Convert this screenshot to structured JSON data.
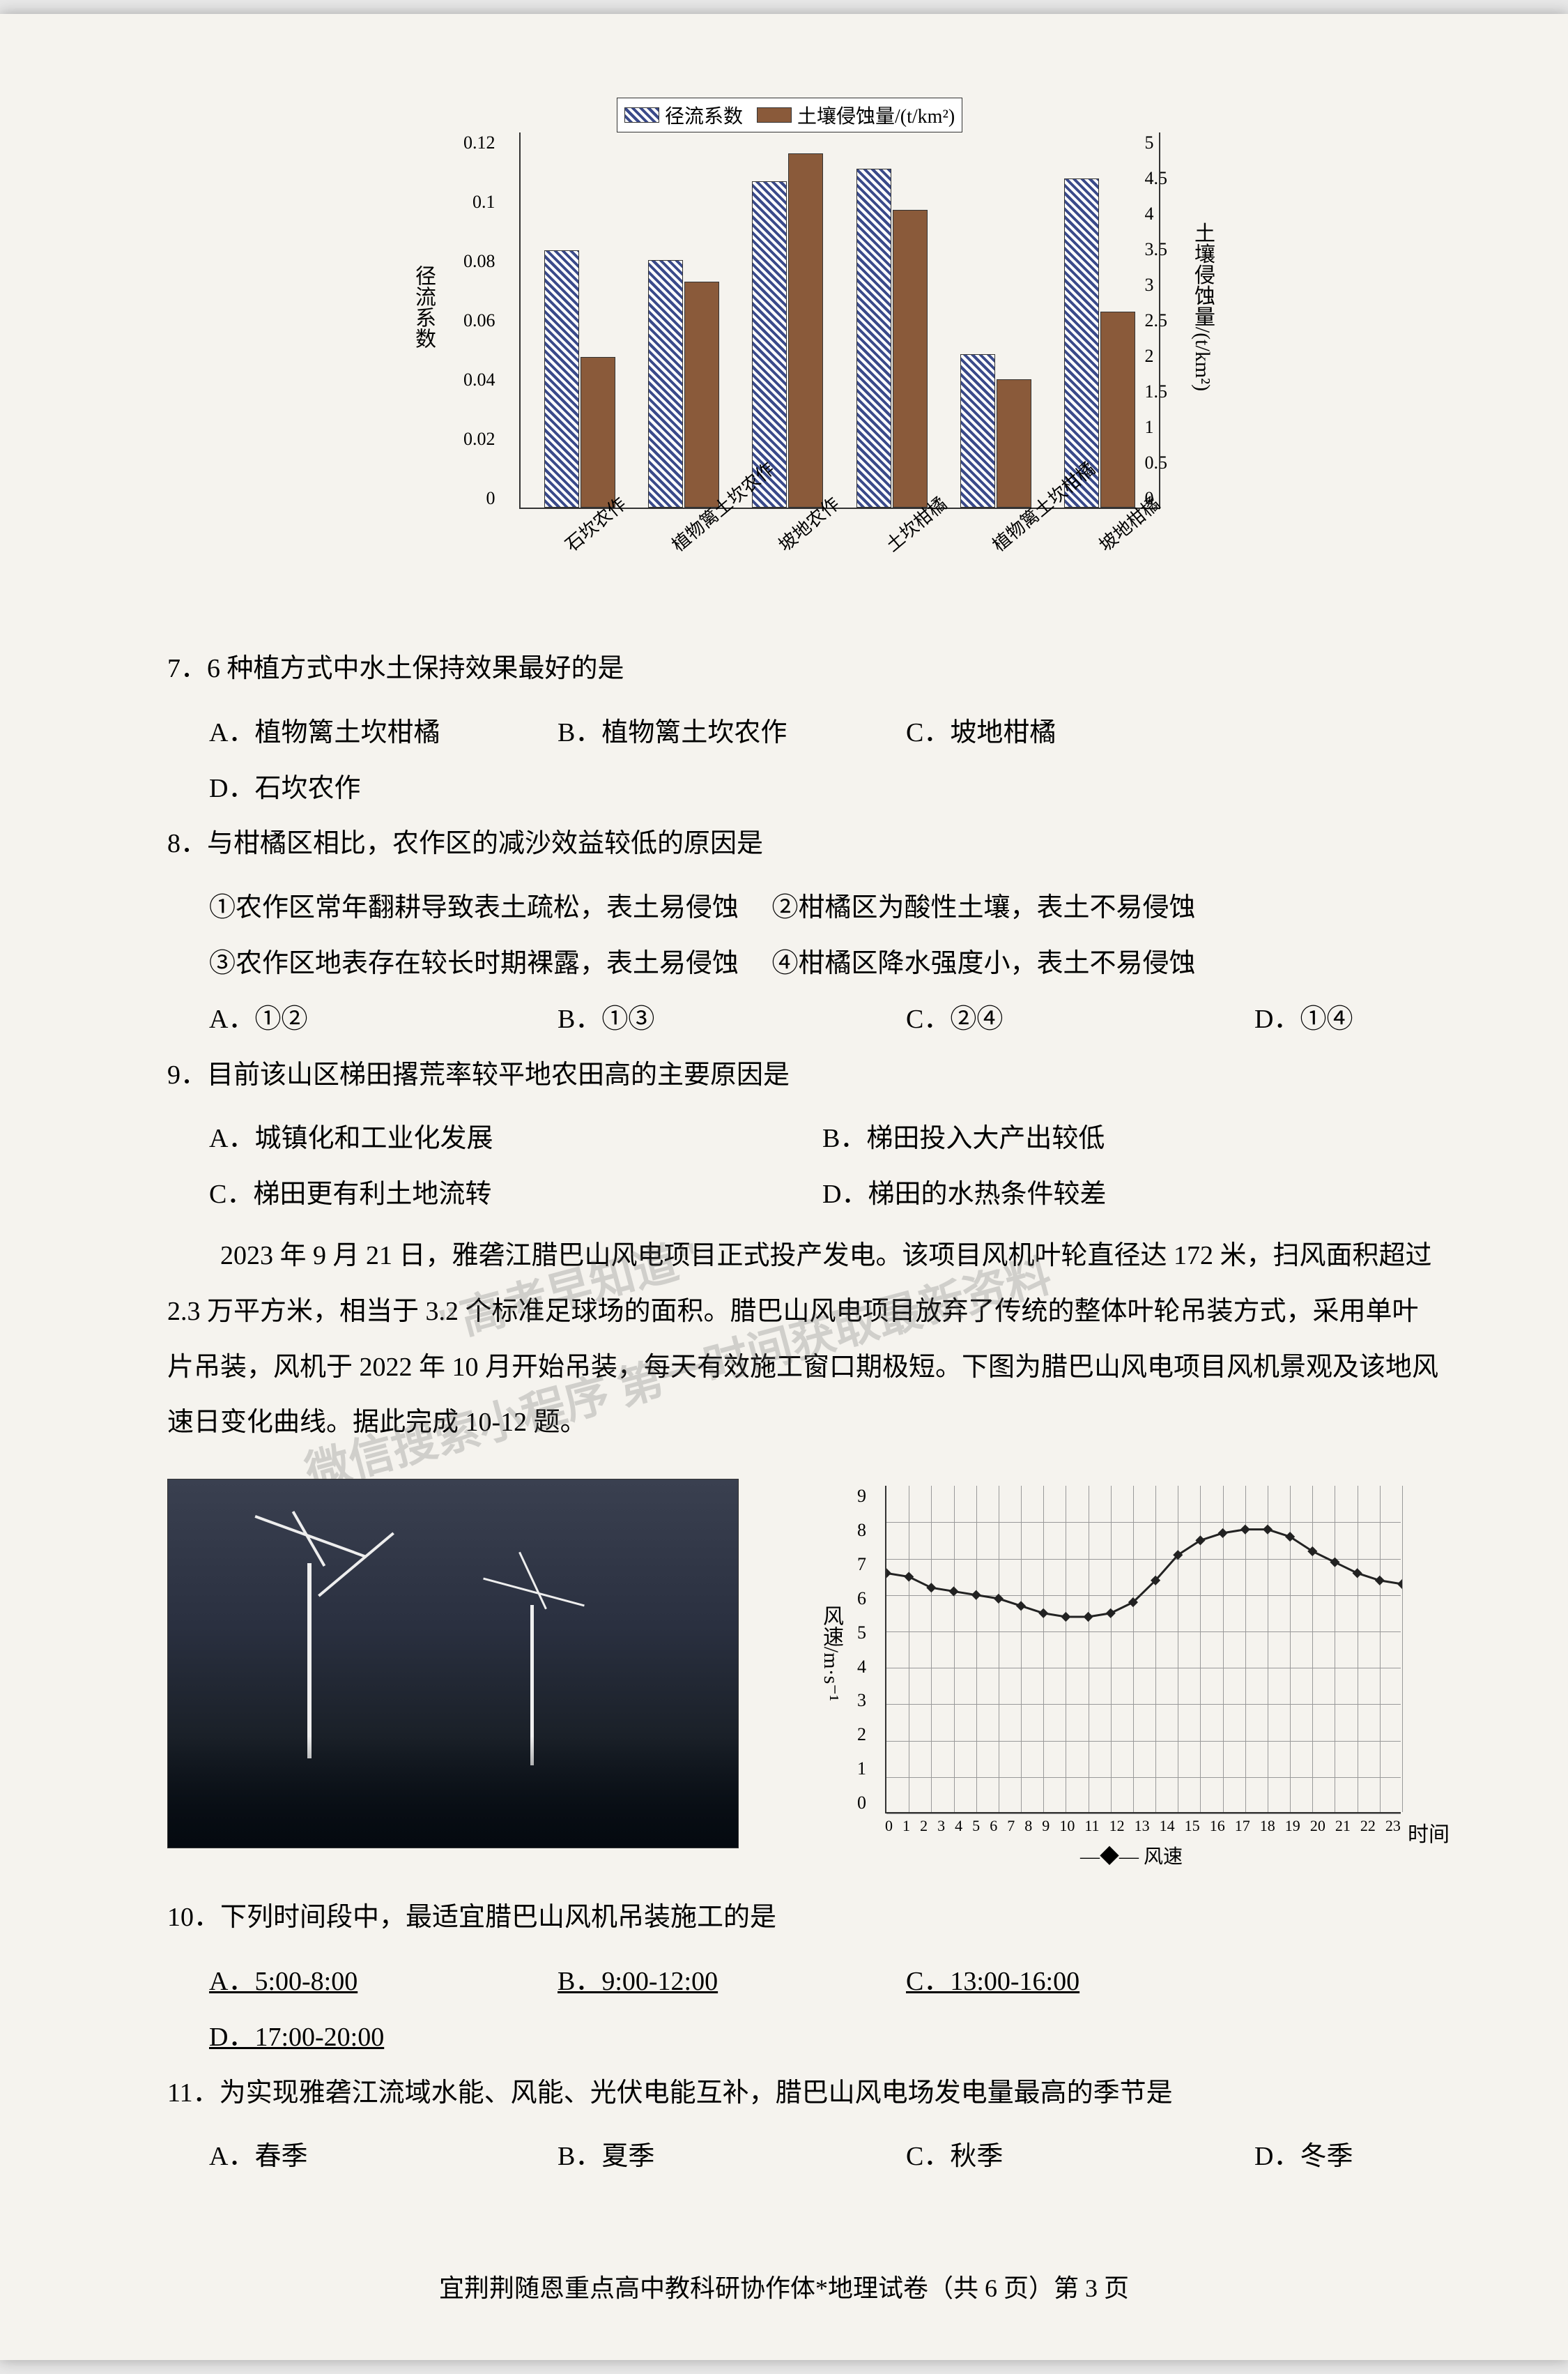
{
  "barChart": {
    "legend": {
      "series1": "径流系数",
      "series2": "土壤侵蚀量/(t/km²)"
    },
    "yLeft": {
      "label": "径流系数",
      "ticks": [
        "0.12",
        "0.1",
        "0.08",
        "0.06",
        "0.04",
        "0.02",
        "0"
      ]
    },
    "yRight": {
      "label": "土壤侵蚀量/(t/km²)",
      "ticks": [
        "5",
        "4.5",
        "4",
        "3.5",
        "3",
        "2.5",
        "2",
        "1.5",
        "1",
        "0.5",
        "0"
      ]
    },
    "categories": [
      "石坎农作",
      "植物篱土坎农作",
      "坡地农作",
      "土坎柑橘",
      "植物篱土坎柑橘",
      "坡地柑橘"
    ],
    "series1_values": [
      0.082,
      0.079,
      0.104,
      0.108,
      0.049,
      0.105
    ],
    "series2_values": [
      2.0,
      3.0,
      4.7,
      3.95,
      1.7,
      2.6
    ],
    "colors": {
      "hatch": "#3a4a8a",
      "solid": "#8a5a3a",
      "axis": "#333333"
    }
  },
  "q7": {
    "text": "7．6 种植方式中水土保持效果最好的是",
    "A": "A．植物篱土坎柑橘",
    "B": "B．植物篱土坎农作",
    "C": "C．坡地柑橘",
    "D": "D．石坎农作"
  },
  "q8": {
    "text": "8．与柑橘区相比，农作区的减沙效益较低的原因是",
    "s1": "①农作区常年翻耕导致表土疏松，表土易侵蚀",
    "s2": "②柑橘区为酸性土壤，表土不易侵蚀",
    "s3": "③农作区地表存在较长时期裸露，表土易侵蚀",
    "s4": "④柑橘区降水强度小，表土不易侵蚀",
    "A": "A．①②",
    "B": "B．①③",
    "C": "C．②④",
    "D": "D．①④"
  },
  "q9": {
    "text": "9．目前该山区梯田撂荒率较平地农田高的主要原因是",
    "A": "A．城镇化和工业化发展",
    "B": "B．梯田投入大产出较低",
    "C": "C．梯田更有利土地流转",
    "D": "D．梯田的水热条件较差"
  },
  "passage": "2023 年 9 月 21 日，雅砻江腊巴山风电项目正式投产发电。该项目风机叶轮直径达 172 米，扫风面积超过 2.3 万平方米，相当于 3.2 个标准足球场的面积。腊巴山风电项目放弃了传统的整体叶轮吊装方式，采用单叶片吊装，风机于 2022 年 10 月开始吊装，每天有效施工窗口期极短。下图为腊巴山风电项目风机景观及该地风速日变化曲线。据此完成 10-12 题。",
  "lineChart": {
    "yLabel": "风速/m·s⁻¹",
    "yTicks": [
      "9",
      "8",
      "7",
      "6",
      "5",
      "4",
      "3",
      "2",
      "1",
      "0"
    ],
    "xTicks": [
      "0",
      "1",
      "2",
      "3",
      "4",
      "5",
      "6",
      "7",
      "8",
      "9",
      "10",
      "11",
      "12",
      "13",
      "14",
      "15",
      "16",
      "17",
      "18",
      "19",
      "20",
      "21",
      "22",
      "23"
    ],
    "xLabel": "时间",
    "legend": "—◆— 风速",
    "points": [
      6.6,
      6.5,
      6.2,
      6.1,
      6.0,
      5.9,
      5.7,
      5.5,
      5.4,
      5.4,
      5.5,
      5.8,
      6.4,
      7.1,
      7.5,
      7.7,
      7.8,
      7.8,
      7.6,
      7.2,
      6.9,
      6.6,
      6.4,
      6.3
    ],
    "colors": {
      "line": "#222222",
      "grid": "#999999"
    }
  },
  "q10": {
    "text": "10．下列时间段中，最适宜腊巴山风机吊装施工的是",
    "A": "A．5:00-8:00",
    "B": "B．9:00-12:00",
    "C": "C．13:00-16:00",
    "D": "D．17:00-20:00"
  },
  "q11": {
    "text": "11．为实现雅砻江流域水能、风能、光伏电能互补，腊巴山风电场发电量最高的季节是",
    "A": "A．春季",
    "B": "B．夏季",
    "C": "C．秋季",
    "D": "D．冬季"
  },
  "watermark1": "\"高考早知道\"",
  "watermark2": "微信搜索小程序 第一时间获取最新资料",
  "footer": "宜荆荆随恩重点高中教科研协作体*地理试卷（共 6 页）第 3 页"
}
